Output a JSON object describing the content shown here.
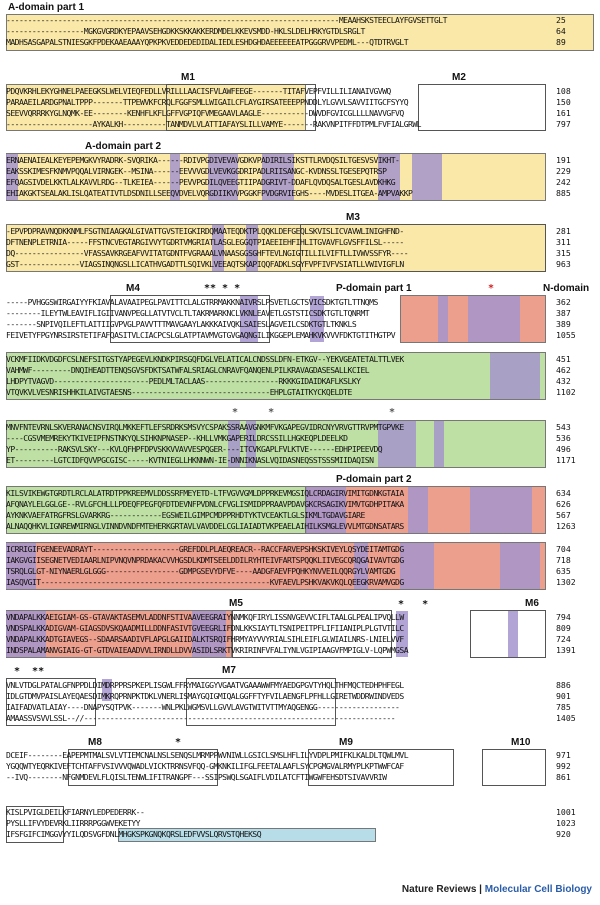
{
  "labels": {
    "a_part1": "A-domain part 1",
    "a_part2": "A-domain part 2",
    "p_part1": "P-domain part 1",
    "p_part2": "P-domain part 2",
    "n_domain": "N-domain",
    "m1": "M1",
    "m2": "M2",
    "m3": "M3",
    "m4": "M4",
    "m5": "M5",
    "m6": "M6",
    "m7": "M7",
    "m8": "M8",
    "m9": "M9",
    "m10": "M10"
  },
  "blocks": [
    {
      "lines": [
        {
          "seq": "-----------------------------------------------------------------------------MEAAHSKSTEECLAYFGVSETTGLT",
          "num": "25"
        },
        {
          "seq": "------------------MGKGVGRDKYEPAAVSEHGDKKSKKAKKERDMDELKKEVSMDD-HKLSLDELHRKYGTDLSRGLT",
          "num": "64"
        },
        {
          "seq": "MADHSASGAPALSTNIESGKFPDEKAAEAAAYQPKPKVEDDEDEDIDALIEDLESHDGHDAEEEEEEATPGGGRVVPEDML---QTDTRVGLT",
          "num": "89"
        }
      ]
    },
    {
      "lines": [
        {
          "seq": "PDQVKRHLEKYGHNELPAEEGKSLWELVIEQFEDLLVRILLLAACISFVLAWFEEGE-------TITAFVEPFVILLILIANAIVGVWQ",
          "num": "108"
        },
        {
          "seq": "PARAAEILARDGPNALTPPP-------TTPEWVKFCRQLFGGFSMLLWIGAILCFLAYGIRSATEEEPPNDDLYLGVVLSAVVIITGCFSYYQ",
          "num": "150"
        },
        {
          "seq": "SEEVVQRRRKYGLNQMK-EE--------KENHFLKFLGFFVGPIQFVMEGAAVLAAGLE-----------DWVDFGVICGLLLLNAVVGFVQ",
          "num": "161"
        },
        {
          "seq": "--------------------AYKALKH----------TANMDVLVLATTIAFAYSLILLVAMYE-------RAKVNPITFFDTPMLFVFIALGRWL",
          "num": "797"
        }
      ]
    },
    {
      "lines": [
        {
          "seq": "ERNAENAIEALKEYEPEMGKVYRADRK-SVQRIKA------RDIVPGDIVEVAVGDKVPADIRILSIKSTTLRVDQSILTGESVSVIKHT-",
          "num": "191"
        },
        {
          "seq": "EAKSSKIMESFKNMVPQQALVIRNGEK--MSINA------EEVVVGDLVEVKGGDRIPADLRIISANGC-KVDNSSLTGESEPQTRSP",
          "num": "229"
        },
        {
          "seq": "EFQAGSIVDELKKTLALKAVVLRDG--TLKEIEA------PEVVPGDILQVEEGTIIPADGRIVT-DDAFLQVDQSALTGESLAVDKHKG",
          "num": "242"
        },
        {
          "seq": "EHIAKGKTSEALAKLISLQATEATIVTLDSDNILLSEEQVDVELVQRGDIIKVVPGGKFPVDGRVIEGHS----MVDESLITGEA-AMPVAKKP",
          "num": "885"
        }
      ]
    },
    {
      "lines": [
        {
          "seq": "-EPVPDPRAVNQDKKNMLFSGTNIAAGKALGIVATTGVSTEIGKIRDQMAATEQDKTPLQQKLDEFGEQLSKVISLICVAVWLINIGHFND-",
          "num": "281"
        },
        {
          "seq": "DFTNENPLETRNIA-----FFSTNCVEGTARGIVVYTGDRTVMGRIATLASGLEGGQTPIAEEIEHFIHLITGVAVFLGVSFFILSL-----",
          "num": "311"
        },
        {
          "seq": "DQ----------------VFASSAVKRGEAFVVITATGDNTFVGRAAALVNAASGGSGHFTEVLNGIGTILLILVIFTLLIVWVSSFYR----",
          "num": "315"
        },
        {
          "seq": "GST--------------VIAGSINQNGSLLICATHVGADTTLSQIVKLVEEAQTSKAPIQQFADKLSGYFVPFIVFVSIATLLVWIVIGFLN",
          "num": "963"
        }
      ]
    },
    {
      "lines": [
        {
          "seq": "-----PVHGGSWIRGAIYYFKIAVALAVAAIPEGLPAVITTCLALGTRRMAKKNAIVRSLPSVETLGCTSVICSDKTGTLTTNQMS",
          "num": "362"
        },
        {
          "seq": "--------ILEYTWLEAVIFLIGIIVANVPEGLLATVTVCLTLTAKRMARKNCLVKNLEAVETLGSTSTICSDKTGTLTQNRMT",
          "num": "387"
        },
        {
          "seq": "-------SNPIVQILEFTLAITIIGVPVGLPAVVTTTMAVGAAYLAKKKAIVQKLSAIESLAGVEILCSDKTGTLTKNKLS",
          "num": "389"
        },
        {
          "seq": "FEIVETYFPGYNRSIRSTETIFAFQASITVLCIACPCSLGLATPTAVMVGTGVGAQNGILIKGGEPLEMAHKVKVVVFDKTGTITHGTPV",
          "num": "1055"
        }
      ]
    },
    {
      "lines": [
        {
          "seq": "VCKMFIIDKVDGDFCSLNEFSITGSTYAPEGEVLKNDKPIRSGQFDGLVELATICALCNDSSLDFN-ETKGV--YEKVGEATETALTTLVEK",
          "num": "451"
        },
        {
          "seq": "VAHMWF---------DNQIHEADTTENQSGVSFDKTSATWFALSRIAGLCNRAVFQANQENLPILKRAVAGDASESALLKCIEL",
          "num": "462"
        },
        {
          "seq": "LHDPYTVAGVD----------------------PEDLMLTACLAAS-----------------RKKKGIDAIDKAFLKSLKY",
          "num": "432"
        },
        {
          "seq": "VTQVKVLVESNRISHHKILAIVGTAESNS--------------------------------EHPLGTAITKYCKQELDTE",
          "num": "1102"
        }
      ]
    },
    {
      "lines": [
        {
          "seq": "MNVFNTEVRNLSKVERANACNSVIRQLMKKEFTLEFSRDRKSMSVYCSPAKSSRAAVGNKMFVKGAPEGVIDRCNYVRVGTTRVPMTGPVKE",
          "num": "543"
        },
        {
          "seq": "----CGSVMEMREKYTKIVEIPFNSTNKYQLSIHKNPNASEP--KHLLVMKGAPERILDRCSSILLHGKEQPLDEELKD",
          "num": "536"
        },
        {
          "seq": "YP----------RAKSVLSKY---KVLQFHPFDPVSKKVVAVVESPQGER----ITCVKGAPLFVLKTVE------EDHPIPEEVDQ",
          "num": "496"
        },
        {
          "seq": "ET---------LGTCIDFQVVPGCGISC-----KVTNIEGLLHKNNWN-IE-DNNIKNASLVQIDASNEQSSTSSSMIIDAQISN",
          "num": "1171"
        }
      ]
    },
    {
      "lines": [
        {
          "seq": "KILSVIKEWGTGRDTLRCLALATRDTPPKREEMVLDDSSRFMEYETD-LTFVGVVGMLDPPRKEVMGSIQLCRDAGIRVIMITGDNKGTAIA",
          "num": "634"
        },
        {
          "seq": "AFQNAYLELGGLGE--RVLGFCHLLLPDEQFPEGFQFDTDEVNFPVDNLCFVGLISMIDPPRAAVPDAVGKCRSAGIKVIMVTGDHPITAKA",
          "num": "626"
        },
        {
          "seq": "AYKNKVAEFATRGFRSLGVARKRG------------EGSWEILGIMPCMDPPRHDTYKTVCEAKTLGLSIKMLTGDAVGIARE",
          "num": "567"
        },
        {
          "seq": "ALNAQQHKVLIGNREWMIRNGLVINNDVNDFMTEHERKGRTAVLVAVDDELCGLIAIADTVKPEAELAIHILKSMGLEVVLMTGDNSATARS",
          "num": "1263"
        }
      ]
    },
    {
      "lines": [
        {
          "seq": "ICRRIGIFGENEEVADRAYT--------------------GREFDDLPLAEQREACR--RACCFARVEPSHKSKIVEYLQSYDEITAMTGDG",
          "num": "704"
        },
        {
          "seq": "IAKGVGIISEGNETVEDIAARLNIPVNQVNPRDAKACVVHGSDLKDMTSEELDDILRYHTEIVFARTSPQQKLIIVEGCQRQGAIVAVTGDG",
          "num": "718"
        },
        {
          "seq": "TSRQLGLGT-NIYNAERLGLGGG-----------------GDMPGSEVYDFVE----AADGFAEVFPQHKYNVVEILQQRGYLVAMTGDG",
          "num": "635"
        },
        {
          "seq": "IASQVGIT-----------------------------------------------------KVFAEVLPSHKVAKVKQLQEEGKRVAMVGDG",
          "num": "1302"
        }
      ]
    },
    {
      "lines": [
        {
          "seq": "VNDAPALKKAEIGIAM-GS-GTAVAKTASEMVLADDNFSTIVAAVEEGRAIYNNMKQFIRYLISSNVGEVVCIFLTAALGLPEALIPVQLLW",
          "num": "794"
        },
        {
          "seq": "VNDSPALKKADIGVAM-GIAGSDVSKQAADMILLDDNFASIVTGVEEGRLIFDNLKKSIAYTLTSNIPEITPFLIFIIANIPLPLGTVTILC",
          "num": "809"
        },
        {
          "seq": "VNDAPALKKADTGIAVEGS--SDAARSAADIVFLAPGLGAIIDALKTSRQIFHRMYAYVVYRIALSIHLEIFLGLWIAILNRS-LNIELVVF",
          "num": "724"
        },
        {
          "seq": "INDSPALAMANVGIAIG-GT-GTDVAIEAADVVLIRNDLLDVVASIDLSRKTVKRIRINFVFALIYNLVGIPIAAGVFMPIGLV-LQPWMGSA",
          "num": "1391"
        }
      ]
    },
    {
      "lines": [
        {
          "seq": "VNLVTDGLPATALGFNPPDLDIMDRPPRSPKEPLISGWLFFRYMAIGGYVGAATVGAAAWWFMYAEDGPGVTYHQLTHFMQCTEDHPHFEGL",
          "num": "886"
        },
        {
          "seq": "IDLGTDMVPAISLAYEQAESDIMKRQPRNPKTDKLVNERLISMAYGQIGMIQALGGFFTYFVILAENGFLPFHLLGIRETWDDRWINDVEDS",
          "num": "901"
        },
        {
          "seq": "IAIFADVATLAIAY----DNAPYSQTPVK-------WNLPKLWGMSVLLGVVLAVGTWITVTTMYAQGENGG-------------------",
          "num": "785"
        },
        {
          "seq": "AMAASSVSVVLSSL--//------------------------------------------------------------------------",
          "num": "1405"
        }
      ]
    },
    {
      "lines": [
        {
          "seq": "DCEIF--------EAPEPMTMALSVLVTIEMCNALNSLSENQSLMRMPPWVNIWLLGSICLSMSLHFLILYVDPLPMIFKLKALDLTQWLMVL",
          "num": "971"
        },
        {
          "seq": "YGQQWTYEQRKIVEFTCHTAFFVSIVVVQWADLVICKTRRNSVFQQ-GMKNKILIFGLFEETALAAFLSYCPGMGVALRMYPLKPTWWFCAF",
          "num": "992"
        },
        {
          "seq": "--IVQ--------NFGNMDEVLFLQISLTENWLIFITRANGPF---SSIPSWQLSGAIFLVDILATCFTIWGWFEHSDTSIVAVVRIW",
          "num": "861"
        }
      ]
    },
    {
      "lines": [
        {
          "seq": "KISLPVIGLDEILKFIARNYLEDPEDERRK--",
          "num": "1001"
        },
        {
          "seq": "PYSLLIFVYDEVRKLIIRRRPGGWVEKETYY",
          "num": "1023"
        },
        {
          "seq": "IFSFGIFCIMGGVYYILQDSVGFDNLMHGKSPKGNQKQRSLEDFVVSLQRVSTQHEKSQ",
          "num": "920"
        }
      ]
    }
  ],
  "footer": {
    "journal": "Nature Reviews",
    "separator": " | ",
    "section": "Molecular Cell Biology"
  },
  "colors": {
    "a_domain": "#fae8a8",
    "p_domain": "#ed9f8e",
    "n_domain": "#bfe0a4",
    "highlight": "#a494cc",
    "c_term": "#b7dde8"
  }
}
